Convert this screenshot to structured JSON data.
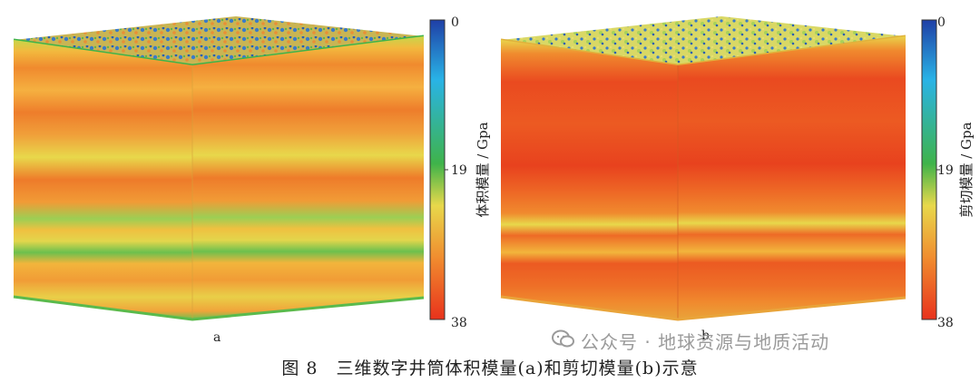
{
  "figure": {
    "caption": "图 8　三维数字井筒体积模量(a)和剪切模量(b)示意",
    "watermark": "公众号 · 地球资源与地质活动",
    "panels": [
      {
        "label": "a",
        "colorbar": {
          "axis_label": "体积模量 / Gpa",
          "ticks": [
            "0",
            "19",
            "38"
          ]
        }
      },
      {
        "label": "b",
        "colorbar": {
          "axis_label": "剪切模量 / Gpa",
          "ticks": [
            "0",
            "19",
            "38"
          ]
        }
      }
    ],
    "colormap": {
      "stops": [
        "#1f3fa6",
        "#29b3e6",
        "#3fb34a",
        "#e8d84b",
        "#f08a2e",
        "#e8321c"
      ],
      "range": [
        0,
        38
      ]
    }
  }
}
